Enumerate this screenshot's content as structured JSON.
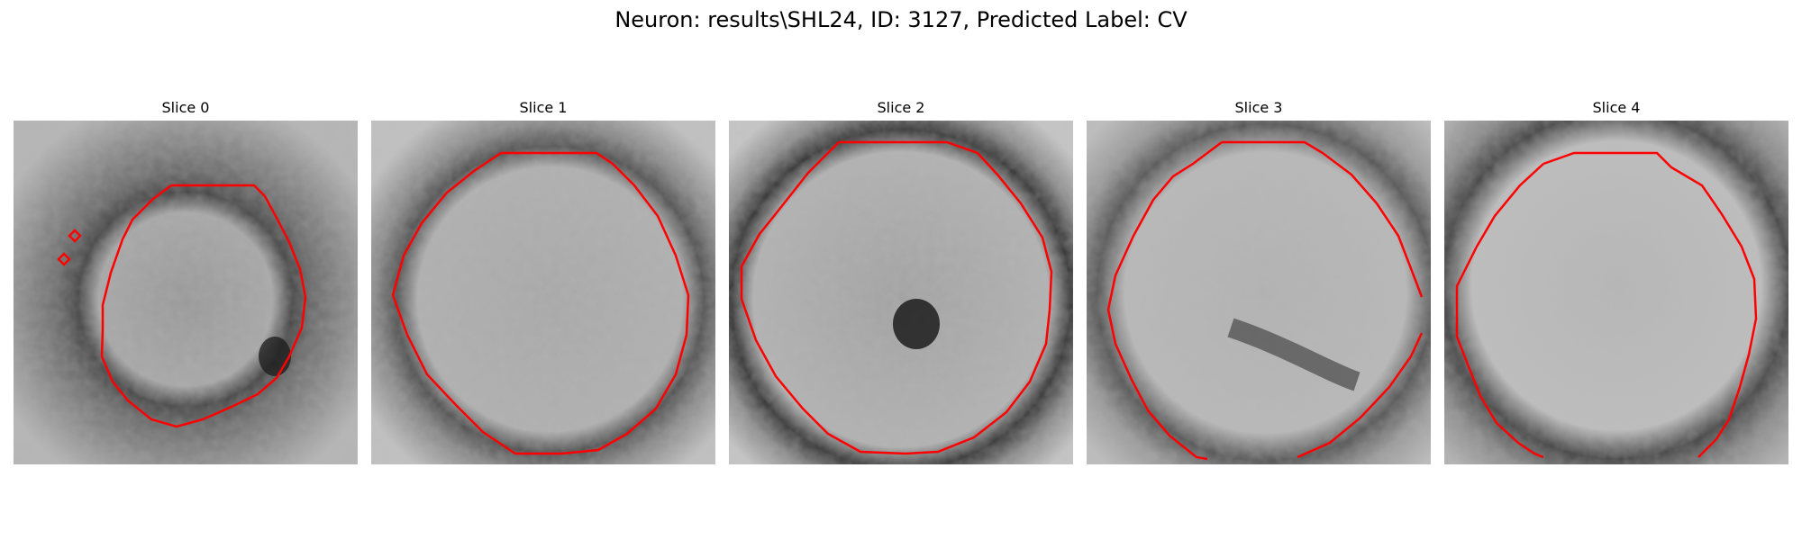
{
  "figure": {
    "title": "Neuron: results\\SHL24, ID: 3127, Predicted Label: CV",
    "contour_color": "#ff0000"
  },
  "panels": [
    {
      "title": "Slice 0"
    },
    {
      "title": "Slice 1"
    },
    {
      "title": "Slice 2"
    },
    {
      "title": "Slice 3"
    },
    {
      "title": "Slice 4"
    }
  ]
}
